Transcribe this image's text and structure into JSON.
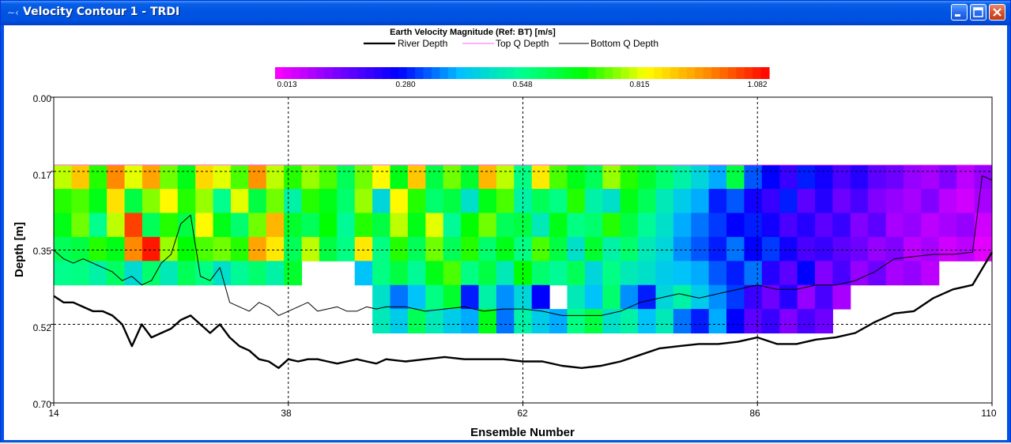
{
  "window": {
    "title": "Velocity Contour 1 - TRDI",
    "icon": "adcp-icon",
    "controls": [
      "minimize",
      "maximize",
      "close"
    ]
  },
  "chart_data": {
    "type": "heatmap",
    "title": "Earth Velocity Magnitude (Ref: BT) [m/s]",
    "xlabel": "Ensemble Number",
    "ylabel": "Depth [m]",
    "xlim": [
      14,
      110
    ],
    "ylim": [
      0.0,
      0.7
    ],
    "y_inverted": true,
    "grid": true,
    "x_ticks": [
      "14",
      "38",
      "62",
      "86",
      "110"
    ],
    "y_ticks": [
      "0.00",
      "0.17",
      "0.35",
      "0.52",
      "0.70"
    ],
    "colorbar": {
      "min": 0.013,
      "max": 1.082,
      "ticks": [
        "0.013",
        "0.280",
        "0.548",
        "0.815",
        "1.082"
      ],
      "colormap": [
        "#ff00ff",
        "#7a00ff",
        "#0000ff",
        "#00c0ff",
        "#00ff90",
        "#00ff00",
        "#ffff00",
        "#ff8c00",
        "#ff0000"
      ]
    },
    "legend": {
      "placement": "top",
      "entries": [
        {
          "label": "River Depth",
          "color": "#000000"
        },
        {
          "label": "Top Q Depth",
          "color": "#ff66ff"
        },
        {
          "label": "Bottom Q Depth",
          "color": "#000000"
        }
      ]
    },
    "cell_depths": [
      0.155,
      0.21,
      0.265,
      0.32,
      0.375,
      0.43,
      0.485
    ],
    "top_q_depth": 0.155,
    "bin_cut_ensemble": 64,
    "velocity_columns": [
      [
        0.78,
        0.7,
        0.66,
        0.6,
        0.55,
        null,
        null
      ],
      [
        0.88,
        0.72,
        0.74,
        0.62,
        0.56,
        null,
        null
      ],
      [
        0.7,
        0.66,
        0.55,
        0.7,
        0.52,
        null,
        null
      ],
      [
        0.95,
        0.85,
        0.78,
        0.66,
        0.59,
        null,
        null
      ],
      [
        0.8,
        0.62,
        1.02,
        0.95,
        0.47,
        null,
        null
      ],
      [
        0.92,
        0.75,
        0.6,
        1.06,
        0.58,
        null,
        null
      ],
      [
        0.74,
        0.82,
        0.7,
        0.76,
        0.5,
        null,
        null
      ],
      [
        0.66,
        0.7,
        0.62,
        0.68,
        0.6,
        null,
        null
      ],
      [
        0.86,
        0.76,
        0.82,
        0.72,
        0.56,
        null,
        null
      ],
      [
        0.8,
        0.55,
        0.66,
        0.74,
        0.48,
        null,
        null
      ],
      [
        0.72,
        0.8,
        0.58,
        0.7,
        0.54,
        null,
        null
      ],
      [
        0.94,
        0.62,
        0.74,
        0.92,
        0.58,
        null,
        null
      ],
      [
        0.78,
        0.74,
        0.9,
        0.84,
        0.52,
        null,
        null
      ],
      [
        0.7,
        0.52,
        0.64,
        0.6,
        0.64,
        null,
        null
      ],
      [
        0.76,
        0.7,
        0.6,
        0.78,
        null,
        null,
        null
      ],
      [
        0.72,
        0.66,
        0.68,
        0.62,
        null,
        null,
        null
      ],
      [
        0.6,
        0.58,
        0.54,
        0.56,
        null,
        null,
        null
      ],
      [
        0.74,
        0.76,
        0.7,
        0.84,
        0.42,
        null,
        null
      ],
      [
        0.82,
        0.46,
        0.62,
        0.56,
        0.56,
        0.48,
        0.5
      ],
      [
        0.66,
        0.82,
        0.78,
        0.7,
        0.62,
        0.36,
        0.44
      ],
      [
        0.88,
        0.7,
        0.66,
        0.6,
        0.54,
        0.42,
        0.6
      ],
      [
        0.62,
        0.58,
        0.8,
        0.74,
        0.66,
        0.56,
        0.5
      ],
      [
        0.74,
        0.62,
        0.54,
        0.6,
        0.72,
        0.64,
        0.44
      ],
      [
        0.64,
        0.48,
        0.68,
        0.7,
        0.56,
        0.3,
        0.4
      ],
      [
        0.9,
        0.66,
        0.74,
        0.58,
        0.62,
        0.52,
        0.66
      ],
      [
        0.78,
        0.72,
        0.6,
        0.66,
        0.5,
        0.38,
        0.36
      ],
      [
        0.56,
        0.52,
        0.62,
        0.56,
        0.68,
        0.46,
        0.52
      ],
      [
        0.84,
        0.6,
        0.5,
        0.72,
        0.58,
        0.28,
        0.44
      ],
      [
        0.72,
        0.56,
        0.66,
        0.62,
        0.54,
        null,
        0.4
      ],
      [
        0.66,
        0.7,
        0.56,
        0.48,
        0.6,
        0.5,
        0.56
      ],
      [
        0.6,
        0.52,
        0.58,
        0.64,
        0.46,
        0.42,
        0.62
      ],
      [
        0.76,
        0.48,
        0.7,
        0.52,
        0.56,
        0.58,
        0.48
      ],
      [
        0.7,
        0.66,
        0.62,
        0.58,
        0.5,
        0.38,
        0.52
      ],
      [
        0.64,
        0.6,
        0.54,
        0.5,
        0.48,
        0.3,
        0.42
      ],
      [
        0.58,
        0.5,
        0.48,
        0.46,
        0.44,
        0.46,
        0.5
      ],
      [
        0.52,
        0.44,
        0.4,
        0.38,
        0.42,
        0.52,
        0.36
      ],
      [
        0.46,
        0.4,
        0.36,
        0.34,
        0.4,
        0.44,
        0.3
      ],
      [
        0.4,
        0.3,
        0.32,
        0.3,
        0.34,
        0.38,
        0.4
      ],
      [
        0.62,
        0.34,
        0.28,
        0.36,
        0.3,
        0.32,
        0.28
      ],
      [
        0.34,
        0.26,
        0.3,
        0.28,
        0.36,
        0.22,
        0.18
      ],
      [
        0.28,
        0.22,
        0.26,
        0.32,
        0.24,
        0.16,
        0.22
      ],
      [
        0.22,
        0.3,
        0.2,
        0.26,
        0.18,
        0.24,
        0.14
      ],
      [
        0.3,
        0.18,
        0.24,
        0.2,
        0.28,
        0.12,
        0.2
      ],
      [
        0.26,
        0.24,
        0.18,
        0.22,
        0.14,
        0.2,
        0.16
      ],
      [
        0.2,
        0.16,
        0.22,
        0.18,
        0.2,
        0.1,
        null
      ],
      [
        0.24,
        0.2,
        0.14,
        0.16,
        0.12,
        null,
        null
      ],
      [
        0.18,
        0.14,
        0.18,
        0.12,
        0.16,
        null,
        null
      ],
      [
        0.16,
        0.12,
        0.1,
        0.14,
        0.1,
        null,
        null
      ],
      [
        0.12,
        0.1,
        0.12,
        0.08,
        0.12,
        null,
        null
      ],
      [
        0.1,
        0.14,
        0.08,
        0.1,
        0.08,
        null,
        null
      ],
      [
        0.14,
        0.08,
        0.1,
        0.06,
        null,
        null,
        null
      ],
      [
        0.08,
        0.06,
        0.12,
        0.08,
        null,
        null,
        null
      ],
      [
        0.12,
        0.1,
        0.06,
        0.04,
        null,
        null,
        null
      ]
    ],
    "series": [
      {
        "name": "River Depth",
        "x": [
          14,
          15,
          16,
          17,
          18,
          19,
          20,
          21,
          22,
          23,
          24,
          25,
          26,
          27,
          28,
          29,
          30,
          31,
          32,
          33,
          34,
          35,
          36,
          37,
          38,
          39,
          40,
          41,
          42,
          43,
          44,
          45,
          46,
          47,
          48,
          50,
          52,
          54,
          56,
          58,
          60,
          62,
          64,
          66,
          68,
          70,
          72,
          74,
          76,
          78,
          80,
          82,
          84,
          86,
          88,
          90,
          92,
          94,
          96,
          98,
          100,
          102,
          104,
          106,
          108,
          110
        ],
        "y": [
          0.455,
          0.47,
          0.47,
          0.48,
          0.49,
          0.49,
          0.5,
          0.52,
          0.57,
          0.52,
          0.55,
          0.54,
          0.53,
          0.51,
          0.5,
          0.52,
          0.54,
          0.52,
          0.55,
          0.57,
          0.58,
          0.6,
          0.605,
          0.62,
          0.6,
          0.605,
          0.6,
          0.6,
          0.605,
          0.61,
          0.605,
          0.6,
          0.605,
          0.61,
          0.6,
          0.605,
          0.6,
          0.595,
          0.6,
          0.6,
          0.6,
          0.605,
          0.605,
          0.615,
          0.62,
          0.615,
          0.605,
          0.59,
          0.575,
          0.57,
          0.565,
          0.565,
          0.56,
          0.55,
          0.565,
          0.565,
          0.555,
          0.55,
          0.54,
          0.515,
          0.495,
          0.49,
          0.46,
          0.44,
          0.43,
          0.355
        ]
      },
      {
        "name": "Bottom Q Depth",
        "x": [
          14,
          15,
          16,
          17,
          18,
          19,
          20,
          21,
          22,
          23,
          24,
          25,
          26,
          27,
          28,
          29,
          30,
          31,
          32,
          33,
          34,
          35,
          36,
          37,
          38,
          39,
          40,
          41,
          42,
          43,
          44,
          45,
          46,
          47,
          48,
          50,
          52,
          54,
          56,
          58,
          60,
          62,
          64,
          66,
          68,
          70,
          72,
          74,
          76,
          78,
          80,
          82,
          84,
          86,
          88,
          90,
          92,
          94,
          96,
          98,
          100,
          102,
          104,
          106,
          108,
          109,
          110
        ],
        "y": [
          0.35,
          0.37,
          0.38,
          0.37,
          0.38,
          0.39,
          0.4,
          0.42,
          0.41,
          0.43,
          0.42,
          0.38,
          0.36,
          0.29,
          0.27,
          0.41,
          0.42,
          0.39,
          0.47,
          0.48,
          0.49,
          0.47,
          0.48,
          0.5,
          0.49,
          0.48,
          0.47,
          0.49,
          0.485,
          0.48,
          0.49,
          0.49,
          0.48,
          0.485,
          0.48,
          0.48,
          0.49,
          0.485,
          0.48,
          0.49,
          0.485,
          0.485,
          0.49,
          0.5,
          0.5,
          0.5,
          0.49,
          0.47,
          0.46,
          0.45,
          0.46,
          0.45,
          0.44,
          0.43,
          0.44,
          0.44,
          0.43,
          0.43,
          0.42,
          0.4,
          0.37,
          0.365,
          0.36,
          0.36,
          0.355,
          0.18,
          0.19
        ]
      },
      {
        "name": "Top Q Depth",
        "x": [
          14,
          110
        ],
        "y": [
          0.155,
          0.155
        ]
      }
    ]
  }
}
